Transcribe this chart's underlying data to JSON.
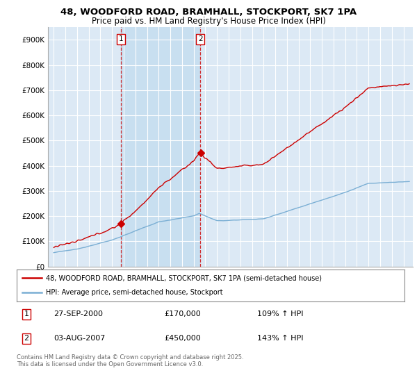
{
  "title": "48, WOODFORD ROAD, BRAMHALL, STOCKPORT, SK7 1PA",
  "subtitle": "Price paid vs. HM Land Registry's House Price Index (HPI)",
  "red_label": "48, WOODFORD ROAD, BRAMHALL, STOCKPORT, SK7 1PA (semi-detached house)",
  "blue_label": "HPI: Average price, semi-detached house, Stockport",
  "annotation1_date": "27-SEP-2000",
  "annotation1_price": "£170,000",
  "annotation1_hpi": "109% ↑ HPI",
  "annotation2_date": "03-AUG-2007",
  "annotation2_price": "£450,000",
  "annotation2_hpi": "143% ↑ HPI",
  "footer": "Contains HM Land Registry data © Crown copyright and database right 2025.\nThis data is licensed under the Open Government Licence v3.0.",
  "red_color": "#cc0000",
  "blue_color": "#7bafd4",
  "background_color": "#dce9f5",
  "highlight_color": "#c8dff0",
  "ylim": [
    0,
    950000
  ],
  "yticks": [
    0,
    100000,
    200000,
    300000,
    400000,
    500000,
    600000,
    700000,
    800000,
    900000
  ],
  "ytick_labels": [
    "£0",
    "£100K",
    "£200K",
    "£300K",
    "£400K",
    "£500K",
    "£600K",
    "£700K",
    "£800K",
    "£900K"
  ],
  "sale1_year": 2000.75,
  "sale1_price": 170000,
  "sale2_year": 2007.58,
  "sale2_price": 450000
}
